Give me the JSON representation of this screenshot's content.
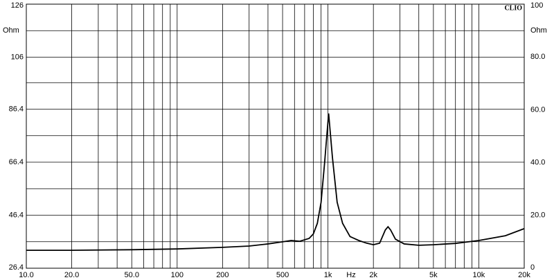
{
  "chart_data": {
    "type": "line",
    "brand": "CLIO",
    "y_unit": "Ohm",
    "y2_unit": "Ohm",
    "x_unit": "Hz",
    "log_x": true,
    "xlim": [
      10,
      20000
    ],
    "xticks": [
      {
        "value": 10,
        "label": "10.0"
      },
      {
        "value": 20,
        "label": "20.0"
      },
      {
        "value": 50,
        "label": "50.0"
      },
      100,
      200,
      500,
      {
        "value": 1000,
        "label": "1k"
      },
      {
        "value": 2000,
        "label": "2k"
      },
      {
        "value": 5000,
        "label": "5k"
      },
      {
        "value": 10000,
        "label": "10k"
      },
      {
        "value": 20000,
        "label": "20k"
      }
    ],
    "xgrid": [
      10,
      20,
      30,
      40,
      50,
      60,
      70,
      80,
      90,
      100,
      200,
      300,
      400,
      500,
      600,
      700,
      800,
      900,
      1000,
      2000,
      3000,
      4000,
      5000,
      6000,
      7000,
      8000,
      9000,
      10000,
      20000
    ],
    "ylim": [
      26.4,
      126
    ],
    "yticks": [
      26.4,
      46.4,
      66.4,
      86.4,
      106,
      126
    ],
    "ygrid": [
      26.4,
      36.4,
      46.4,
      56.4,
      66.4,
      76.4,
      86.4,
      96.4,
      106,
      116,
      126
    ],
    "y2lim": [
      0,
      100
    ],
    "y2ticks": [
      0,
      {
        "value": 20,
        "label": "20.0"
      },
      {
        "value": 40,
        "label": "40.0"
      },
      {
        "value": 60,
        "label": "60.0"
      },
      {
        "value": 80,
        "label": "80.0"
      },
      100
    ],
    "series": [
      {
        "axis": "y2",
        "color": "#000000",
        "x": [
          10,
          20,
          50,
          100,
          200,
          300,
          400,
          500,
          570,
          650,
          750,
          800,
          850,
          900,
          950,
          1010,
          1070,
          1150,
          1250,
          1400,
          1600,
          1800,
          2000,
          2200,
          2400,
          2500,
          2600,
          2800,
          3200,
          4000,
          5000,
          7000,
          10000,
          15000,
          20000
        ],
        "values": [
          6.8,
          6.8,
          7.0,
          7.3,
          7.9,
          8.4,
          9.2,
          10.0,
          10.5,
          10.2,
          11.3,
          13,
          17,
          25,
          40,
          58.6,
          42,
          25,
          17,
          12,
          10.5,
          9.5,
          8.9,
          9.5,
          14.5,
          15.7,
          14.5,
          11,
          9.2,
          8.7,
          8.9,
          9.4,
          10.5,
          12.3,
          15.0
        ]
      }
    ]
  }
}
